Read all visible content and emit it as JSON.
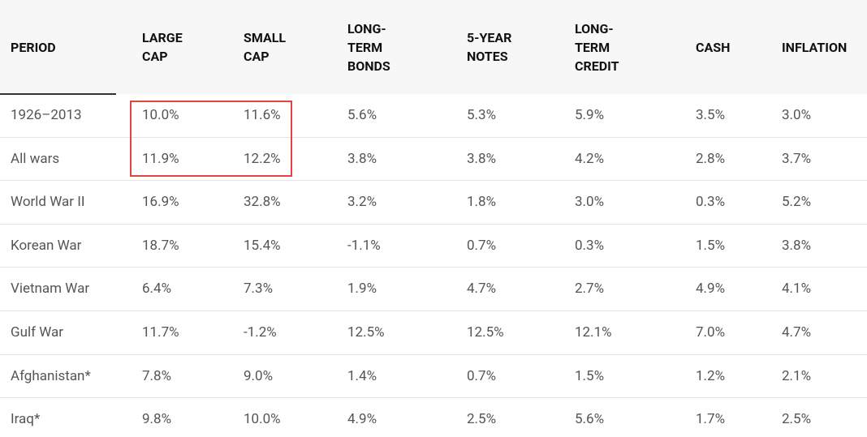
{
  "table": {
    "columns": [
      "PERIOD",
      "LARGE CAP",
      "SMALL CAP",
      "LONG-TERM BONDS",
      "5-YEAR NOTES",
      "LONG-TERM CREDIT",
      "CASH",
      "INFLATION"
    ],
    "rows": [
      [
        "1926–2013",
        "10.0%",
        "11.6%",
        "5.6%",
        "5.3%",
        "5.9%",
        "3.5%",
        "3.0%"
      ],
      [
        "All wars",
        "11.9%",
        "12.2%",
        "3.8%",
        "3.8%",
        "4.2%",
        "2.8%",
        "3.7%"
      ],
      [
        "World War II",
        "16.9%",
        "32.8%",
        "3.2%",
        "1.8%",
        "3.0%",
        "0.3%",
        "5.2%"
      ],
      [
        "Korean War",
        "18.7%",
        "15.4%",
        "-1.1%",
        "0.7%",
        "0.3%",
        "1.5%",
        "3.8%"
      ],
      [
        "Vietnam War",
        "6.4%",
        "7.3%",
        "1.9%",
        "4.7%",
        "2.7%",
        "4.9%",
        "4.1%"
      ],
      [
        "Gulf War",
        "11.7%",
        "-1.2%",
        "12.5%",
        "12.5%",
        "12.1%",
        "7.0%",
        "4.7%"
      ],
      [
        "Afghanistan*",
        "7.8%",
        "9.0%",
        "1.4%",
        "0.7%",
        "1.5%",
        "1.2%",
        "2.1%"
      ],
      [
        "Iraq*",
        "9.8%",
        "10.0%",
        "4.9%",
        "2.5%",
        "5.6%",
        "1.7%",
        "2.5%"
      ]
    ]
  }
}
